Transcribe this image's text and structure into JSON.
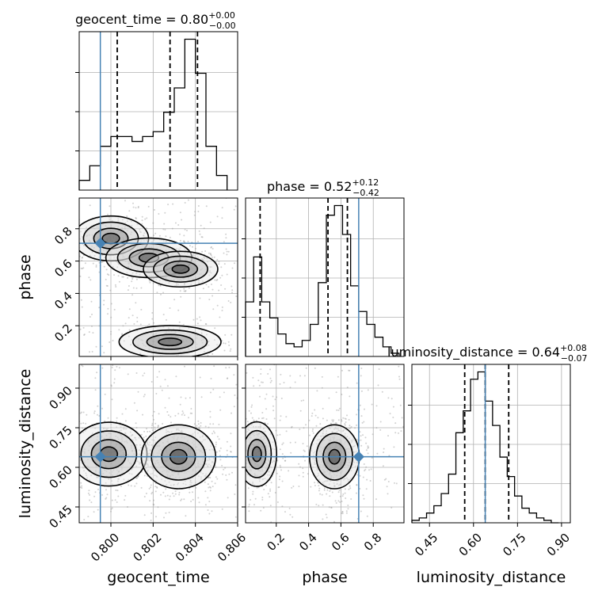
{
  "chart_data": [
    {
      "type": "histogram",
      "panel": "geocent_time-marginal",
      "title": {
        "param": "geocent_time",
        "value": "0.80",
        "plus": "+0.00",
        "minus": "−0.00"
      },
      "xlim": [
        0.7985,
        0.806
      ],
      "bins_x": [
        0.7985,
        0.799,
        0.7995,
        0.8,
        0.8005,
        0.801,
        0.8015,
        0.802,
        0.8025,
        0.803,
        0.8035,
        0.804,
        0.8045,
        0.805,
        0.8055
      ],
      "counts": [
        2,
        5,
        9,
        11,
        11,
        10,
        11,
        12,
        16,
        21,
        31,
        24,
        9,
        3
      ],
      "quantiles": [
        0.8003,
        0.8028,
        0.8041
      ],
      "truth": 0.7995,
      "tick_positions_y": [
        10,
        20,
        30
      ]
    },
    {
      "type": "histogram",
      "panel": "phase-marginal",
      "title": {
        "param": "phase",
        "value": "0.52",
        "plus": "+0.12",
        "minus": "−0.42"
      },
      "xlim": [
        0.01,
        0.99
      ],
      "bins_x": [
        0.01,
        0.06,
        0.11,
        0.16,
        0.21,
        0.26,
        0.31,
        0.36,
        0.41,
        0.46,
        0.51,
        0.56,
        0.61,
        0.66,
        0.71,
        0.76,
        0.81,
        0.86,
        0.91,
        0.96
      ],
      "counts": [
        17,
        31,
        17,
        12,
        7,
        4,
        3,
        5,
        10,
        23,
        44,
        47,
        38,
        22,
        14,
        10,
        6,
        3,
        1
      ],
      "quantiles": [
        0.1,
        0.52,
        0.64
      ],
      "truth": 0.71
    },
    {
      "type": "histogram",
      "panel": "luminosity_distance-marginal",
      "title": {
        "param": "luminosity_distance",
        "value": "0.64",
        "plus": "+0.08",
        "minus": "−0.07"
      },
      "xlim": [
        0.39,
        0.93
      ],
      "bins_x": [
        0.39,
        0.415,
        0.44,
        0.465,
        0.49,
        0.515,
        0.54,
        0.565,
        0.59,
        0.615,
        0.64,
        0.665,
        0.69,
        0.715,
        0.74,
        0.765,
        0.79,
        0.815,
        0.84,
        0.865,
        0.89
      ],
      "counts": [
        1,
        2,
        4,
        7,
        12,
        20,
        37,
        46,
        59,
        62,
        50,
        40,
        27,
        19,
        11,
        6,
        4,
        2,
        1,
        0
      ],
      "quantiles": [
        0.57,
        0.64,
        0.72
      ],
      "truth": 0.64
    },
    {
      "type": "scatter-contour",
      "panel": "geocent_time-vs-phase",
      "xlim": [
        0.7985,
        0.806
      ],
      "ylim": [
        0.01,
        0.99
      ],
      "truth": [
        0.7995,
        0.71
      ],
      "density_modes": [
        {
          "x": 0.8,
          "y": 0.74,
          "sx": 0.0009,
          "sy": 0.07,
          "w": 0.5
        },
        {
          "x": 0.8018,
          "y": 0.62,
          "sx": 0.001,
          "sy": 0.06,
          "w": 0.6
        },
        {
          "x": 0.8033,
          "y": 0.55,
          "sx": 0.0008,
          "sy": 0.05,
          "w": 1.0
        },
        {
          "x": 0.8028,
          "y": 0.1,
          "sx": 0.0012,
          "sy": 0.05,
          "w": 0.55
        }
      ]
    },
    {
      "type": "scatter-contour",
      "panel": "geocent_time-vs-luminosity_distance",
      "xlim": [
        0.7985,
        0.806
      ],
      "ylim": [
        0.39,
        0.99
      ],
      "truth": [
        0.7995,
        0.64
      ],
      "density_modes": [
        {
          "x": 0.7999,
          "y": 0.65,
          "sx": 0.0009,
          "sy": 0.06,
          "w": 0.55
        },
        {
          "x": 0.8032,
          "y": 0.64,
          "sx": 0.0008,
          "sy": 0.055,
          "w": 1.0
        }
      ]
    },
    {
      "type": "scatter-contour",
      "panel": "phase-vs-luminosity_distance",
      "xlim": [
        0.01,
        0.99
      ],
      "ylim": [
        0.39,
        0.99
      ],
      "truth": [
        0.71,
        0.64
      ],
      "density_modes": [
        {
          "x": 0.08,
          "y": 0.65,
          "sx": 0.06,
          "sy": 0.06,
          "w": 0.6
        },
        {
          "x": 0.56,
          "y": 0.64,
          "sx": 0.07,
          "sy": 0.055,
          "w": 1.0
        }
      ]
    }
  ],
  "axes": {
    "geocent_time": {
      "label": "geocent_time",
      "ticks": [
        0.8,
        0.802,
        0.804,
        0.806
      ],
      "tick_labels": [
        "0.800",
        "0.802",
        "0.804",
        "0.806"
      ]
    },
    "phase": {
      "label": "phase",
      "ticks": [
        0.2,
        0.4,
        0.6,
        0.8
      ],
      "tick_labels": [
        "0.2",
        "0.4",
        "0.6",
        "0.8"
      ]
    },
    "luminosity_distance": {
      "label": "luminosity_distance",
      "ticks": [
        0.45,
        0.6,
        0.75,
        0.9
      ],
      "tick_labels": [
        "0.45",
        "0.60",
        "0.75",
        "0.90"
      ]
    }
  },
  "colors": {
    "truth": "#4682b4",
    "hist": "#000000",
    "grid": "#b0b0b0",
    "contour": "#000000"
  }
}
